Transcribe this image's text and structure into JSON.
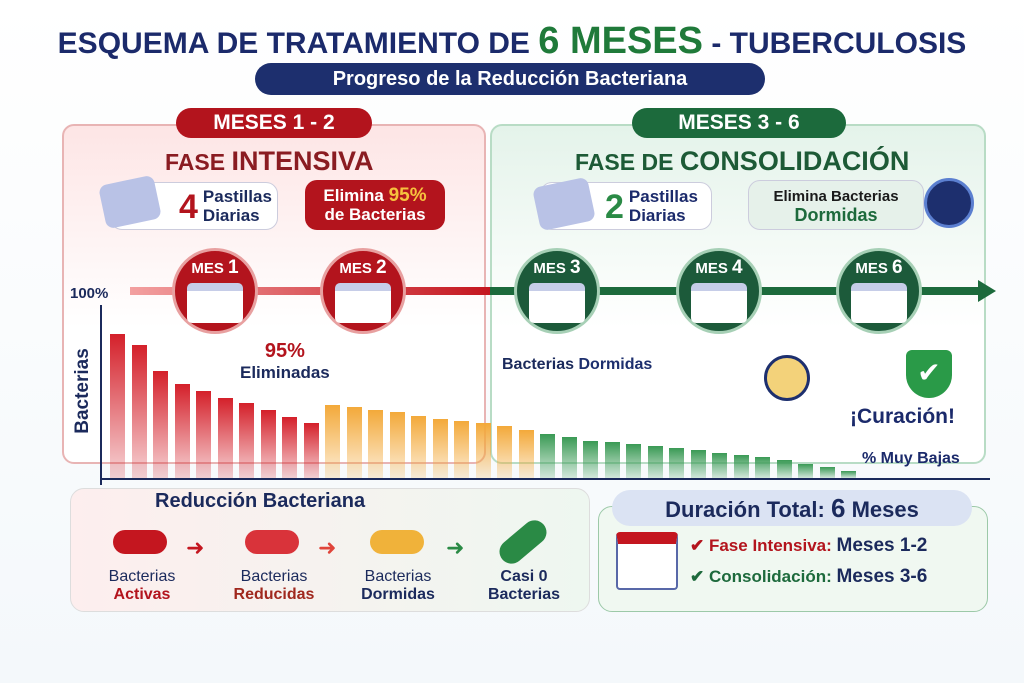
{
  "title": {
    "pre": "ESQUEMA DE TRATAMIENTO DE ",
    "big": "6 MESES",
    "post": " - TUBERCULOSIS"
  },
  "subtitle": "Progreso de la Reducción Bacteriana",
  "intensive": {
    "pill": "MESES 1 - 2",
    "phase_a": "FASE ",
    "phase_b": "INTENSIVA",
    "pills_num": "4",
    "pills_text1": "Pastillas",
    "pills_text2": "Diarias",
    "elim1": "Elimina ",
    "elim_pct": "95%",
    "elim2": "de Bacterias"
  },
  "consolidation": {
    "pill": "MESES 3 - 6",
    "phase_a": "FASE DE ",
    "phase_b": "CONSOLIDACIÓN",
    "pills_num": "2",
    "pills_text1": "Pastillas",
    "pills_text2": "Diarias",
    "elim1": "Elimina Bacterias",
    "elim2": "Dormidas"
  },
  "months": [
    {
      "label": "MES ",
      "n": "1"
    },
    {
      "label": "MES ",
      "n": "2"
    },
    {
      "label": "MES ",
      "n": "3"
    },
    {
      "label": "MES ",
      "n": "4"
    },
    {
      "label": "MES ",
      "n": "6"
    }
  ],
  "chart": {
    "ylabel": "Bacterias",
    "ytop": "100%",
    "annot_pct": "95%",
    "annot_text": "Eliminadas",
    "dormant_a": "Bacterias ",
    "dormant_b": "Dormidas",
    "cure": "¡Curación!",
    "low": "% Muy Bajas",
    "bars": [
      81,
      75,
      60,
      53,
      49,
      45,
      42,
      38,
      34,
      31,
      41,
      40,
      38,
      37,
      35,
      33,
      32,
      31,
      29,
      27,
      25,
      23,
      21,
      20,
      19,
      18,
      17,
      16,
      14,
      13,
      12,
      10,
      8,
      6,
      4
    ],
    "colors": {
      "red": "#d4202a",
      "orange": "#f3a93a",
      "green": "#3a9a55"
    }
  },
  "reduction": {
    "title": "Reducción Bacteriana",
    "stages": [
      {
        "a": "Bacterias",
        "b": "Activas"
      },
      {
        "a": "Bacterias",
        "b": "Reducidas"
      },
      {
        "a": "Bacterias",
        "b": "Dormidas"
      },
      {
        "a": "Casi 0",
        "b": "Bacterias"
      }
    ]
  },
  "duration": {
    "title_a": "Duración Total: ",
    "title_b": "6",
    "title_c": " Meses",
    "row1_label": "Fase Intensiva:",
    "row1_value": "Meses 1-2",
    "row2_label": "Consolidación:",
    "row2_value": "Meses 3-6"
  }
}
